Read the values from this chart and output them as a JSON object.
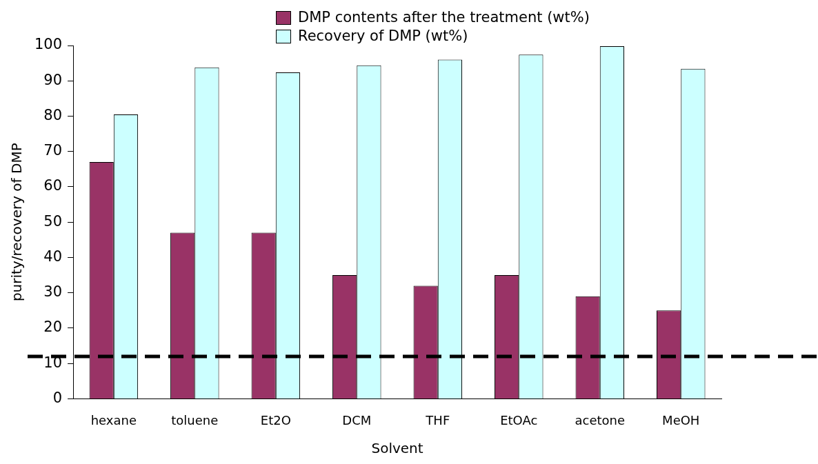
{
  "chart_data": {
    "type": "bar",
    "xlabel": "Solvent",
    "ylabel": "purity/recovery of DMP",
    "categories": [
      "hexane",
      "toluene",
      "Et2O",
      "DCM",
      "THF",
      "EtOAc",
      "acetone",
      "MeOH"
    ],
    "series": [
      {
        "name": "DMP contents after the treatment (wt%)",
        "color": "#993366",
        "values": [
          67,
          47,
          47,
          35,
          32,
          35,
          29,
          25
        ]
      },
      {
        "name": "Recovery of DMP (wt%)",
        "color": "#ccffff",
        "values": [
          80.5,
          93.8,
          92.4,
          94.4,
          96,
          97.4,
          99.8,
          93.4
        ]
      }
    ],
    "ylim": [
      0,
      100
    ],
    "yticks": [
      0,
      10,
      20,
      30,
      40,
      50,
      60,
      70,
      80,
      90,
      100
    ],
    "ref_lines": [
      {
        "axis": "y",
        "value": 12,
        "color": "#000000",
        "line_style": "dashed"
      }
    ],
    "grid": false,
    "legend": "top"
  }
}
